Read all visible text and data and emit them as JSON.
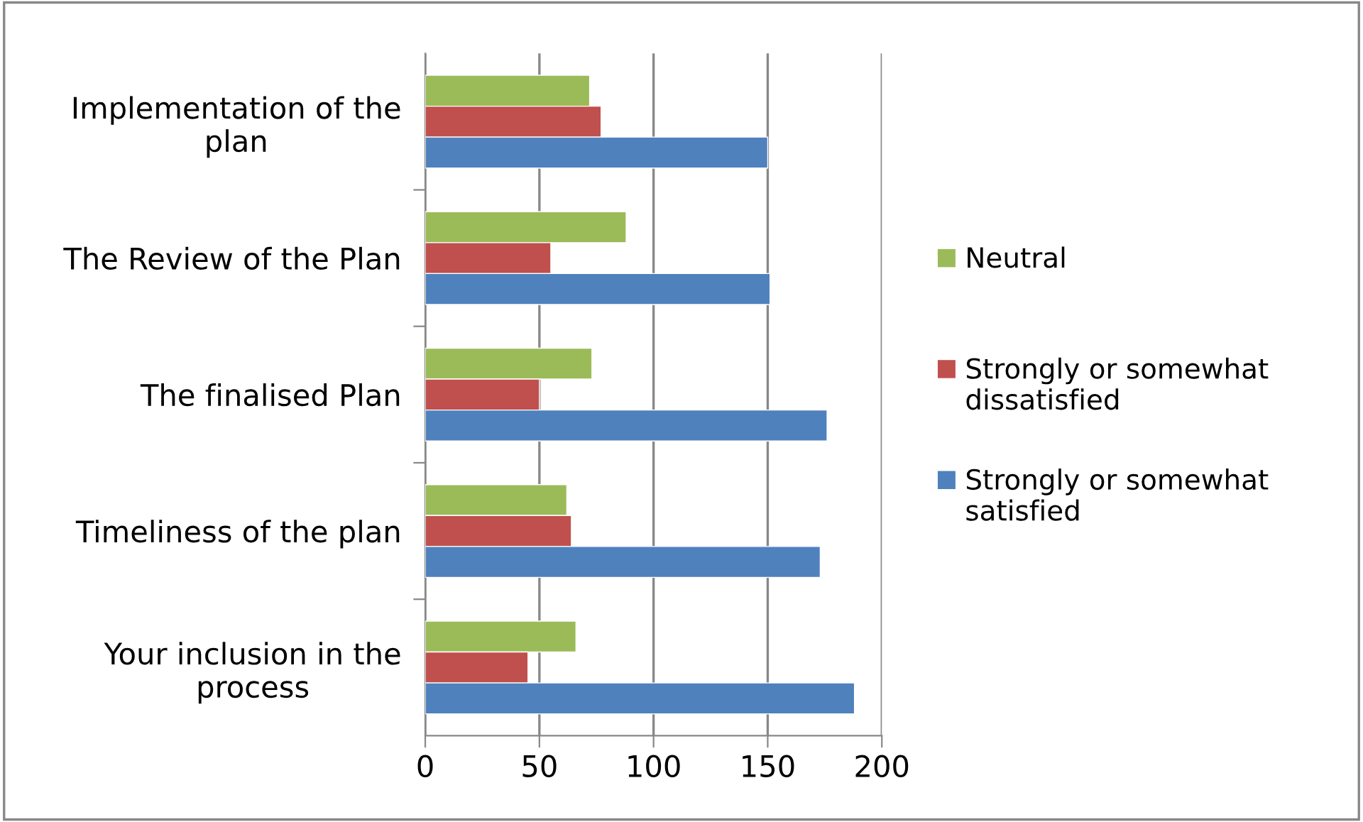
{
  "chart_data": {
    "type": "bar",
    "orientation": "horizontal",
    "categories": [
      "Implementation of the plan",
      "The Review of the Plan",
      "The finalised Plan",
      "Timeliness of the plan",
      "Your inclusion in the process"
    ],
    "series": [
      {
        "name": "Neutral",
        "color": "#9bbb59",
        "values": [
          72,
          88,
          73,
          62,
          66
        ]
      },
      {
        "name": "Strongly or somewhat dissatisfied",
        "color": "#c0504d",
        "values": [
          77,
          55,
          50,
          64,
          45
        ]
      },
      {
        "name": "Strongly or somewhat satisfied",
        "color": "#4f81bd",
        "values": [
          150,
          151,
          176,
          173,
          188
        ]
      }
    ],
    "xlim": [
      0,
      200
    ],
    "xticks": [
      0,
      50,
      100,
      150,
      200
    ],
    "grid": "x",
    "legend": "right"
  }
}
